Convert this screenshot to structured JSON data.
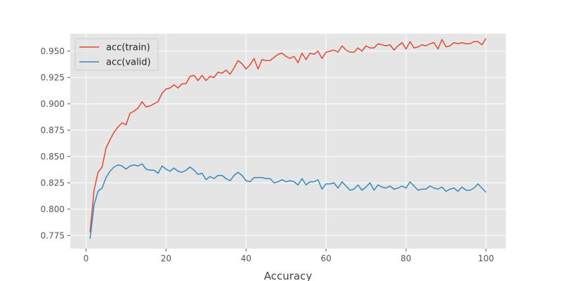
{
  "chart_data": {
    "type": "line",
    "title": "",
    "xlabel": "Accuracy",
    "ylabel": "",
    "xlim": [
      -3.95,
      104.95
    ],
    "ylim": [
      0.7625,
      0.9665
    ],
    "xticks": [
      0,
      20,
      40,
      60,
      80,
      100
    ],
    "xtick_labels": [
      "0",
      "20",
      "40",
      "60",
      "80",
      "100"
    ],
    "yticks": [
      0.775,
      0.8,
      0.825,
      0.85,
      0.875,
      0.9,
      0.925,
      0.95
    ],
    "ytick_labels": [
      "0.775",
      "0.800",
      "0.825",
      "0.850",
      "0.875",
      "0.900",
      "0.925",
      "0.950"
    ],
    "grid": true,
    "legend_position": "top-left",
    "series": [
      {
        "name": "acc(train)",
        "color": "#E24A33",
        "x": [
          1,
          2,
          3,
          4,
          5,
          6,
          7,
          8,
          9,
          10,
          11,
          12,
          13,
          14,
          15,
          16,
          17,
          18,
          19,
          20,
          21,
          22,
          23,
          24,
          25,
          26,
          27,
          28,
          29,
          30,
          31,
          32,
          33,
          34,
          35,
          36,
          37,
          38,
          39,
          40,
          41,
          42,
          43,
          44,
          45,
          46,
          47,
          48,
          49,
          50,
          51,
          52,
          53,
          54,
          55,
          56,
          57,
          58,
          59,
          60,
          61,
          62,
          63,
          64,
          65,
          66,
          67,
          68,
          69,
          70,
          71,
          72,
          73,
          74,
          75,
          76,
          77,
          78,
          79,
          80,
          81,
          82,
          83,
          84,
          85,
          86,
          87,
          88,
          89,
          90,
          91,
          92,
          93,
          94,
          95,
          96,
          97,
          98,
          99,
          100
        ],
        "y": [
          0.778,
          0.818,
          0.835,
          0.84,
          0.858,
          0.866,
          0.873,
          0.878,
          0.882,
          0.88,
          0.891,
          0.893,
          0.896,
          0.902,
          0.897,
          0.898,
          0.9,
          0.902,
          0.91,
          0.914,
          0.915,
          0.918,
          0.915,
          0.919,
          0.919,
          0.926,
          0.927,
          0.922,
          0.927,
          0.922,
          0.926,
          0.925,
          0.93,
          0.929,
          0.932,
          0.928,
          0.934,
          0.941,
          0.938,
          0.933,
          0.937,
          0.943,
          0.933,
          0.942,
          0.941,
          0.941,
          0.944,
          0.947,
          0.948,
          0.945,
          0.943,
          0.945,
          0.939,
          0.948,
          0.942,
          0.948,
          0.947,
          0.95,
          0.943,
          0.949,
          0.95,
          0.951,
          0.949,
          0.955,
          0.951,
          0.949,
          0.949,
          0.953,
          0.95,
          0.955,
          0.953,
          0.953,
          0.957,
          0.956,
          0.955,
          0.956,
          0.951,
          0.955,
          0.958,
          0.952,
          0.959,
          0.953,
          0.954,
          0.956,
          0.955,
          0.957,
          0.958,
          0.952,
          0.961,
          0.954,
          0.955,
          0.958,
          0.957,
          0.958,
          0.957,
          0.957,
          0.959,
          0.959,
          0.956,
          0.962
        ]
      },
      {
        "name": "acc(valid)",
        "color": "#348ABD",
        "x": [
          1,
          2,
          3,
          4,
          5,
          6,
          7,
          8,
          9,
          10,
          11,
          12,
          13,
          14,
          15,
          16,
          17,
          18,
          19,
          20,
          21,
          22,
          23,
          24,
          25,
          26,
          27,
          28,
          29,
          30,
          31,
          32,
          33,
          34,
          35,
          36,
          37,
          38,
          39,
          40,
          41,
          42,
          43,
          44,
          45,
          46,
          47,
          48,
          49,
          50,
          51,
          52,
          53,
          54,
          55,
          56,
          57,
          58,
          59,
          60,
          61,
          62,
          63,
          64,
          65,
          66,
          67,
          68,
          69,
          70,
          71,
          72,
          73,
          74,
          75,
          76,
          77,
          78,
          79,
          80,
          81,
          82,
          83,
          84,
          85,
          86,
          87,
          88,
          89,
          90,
          91,
          92,
          93,
          94,
          95,
          96,
          97,
          98,
          99,
          100
        ],
        "y": [
          0.772,
          0.804,
          0.817,
          0.82,
          0.83,
          0.836,
          0.84,
          0.842,
          0.841,
          0.838,
          0.841,
          0.842,
          0.841,
          0.843,
          0.838,
          0.837,
          0.837,
          0.834,
          0.841,
          0.838,
          0.836,
          0.839,
          0.836,
          0.835,
          0.837,
          0.84,
          0.837,
          0.833,
          0.834,
          0.828,
          0.831,
          0.829,
          0.832,
          0.832,
          0.829,
          0.827,
          0.832,
          0.835,
          0.832,
          0.827,
          0.826,
          0.83,
          0.83,
          0.83,
          0.829,
          0.829,
          0.825,
          0.826,
          0.828,
          0.826,
          0.827,
          0.826,
          0.823,
          0.829,
          0.823,
          0.826,
          0.826,
          0.828,
          0.819,
          0.824,
          0.824,
          0.825,
          0.82,
          0.826,
          0.822,
          0.818,
          0.819,
          0.823,
          0.818,
          0.821,
          0.825,
          0.818,
          0.823,
          0.821,
          0.82,
          0.822,
          0.819,
          0.82,
          0.822,
          0.82,
          0.826,
          0.822,
          0.818,
          0.819,
          0.819,
          0.822,
          0.82,
          0.819,
          0.821,
          0.817,
          0.819,
          0.82,
          0.817,
          0.821,
          0.818,
          0.818,
          0.82,
          0.824,
          0.82,
          0.816
        ]
      }
    ]
  }
}
